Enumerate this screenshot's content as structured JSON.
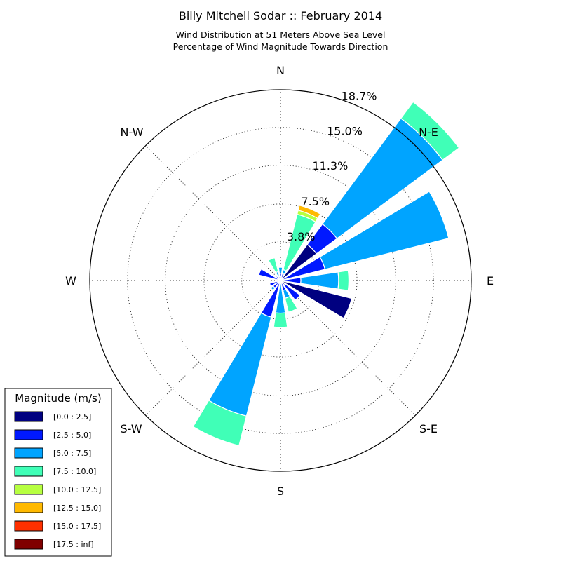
{
  "chart_data": {
    "type": "windrose",
    "title": "Billy Mitchell Sodar :: February 2014",
    "subtitle_1": "Wind Distribution at 51 Meters Above Sea Level",
    "subtitle_2": "Percentage of Wind Magnitude Towards Direction",
    "unit": "%",
    "direction_labels": [
      "N",
      "N-E",
      "E",
      "S-E",
      "S",
      "S-W",
      "W",
      "N-W"
    ],
    "radial_ticks": [
      3.8,
      7.5,
      11.3,
      15.0,
      18.7
    ],
    "radial_tick_labels": [
      "3.8%",
      "7.5%",
      "11.3%",
      "15.0%",
      "18.7%"
    ],
    "rmax": 18.7,
    "grid": true,
    "legend": {
      "title": "Magnitude (m/s)",
      "placement": "lower-left",
      "bins": [
        {
          "label": "[0.0 : 2.5]",
          "color": "#000080"
        },
        {
          "label": "[2.5 : 5.0]",
          "color": "#0019ff"
        },
        {
          "label": "[5.0 : 7.5]",
          "color": "#00a4ff"
        },
        {
          "label": "[7.5 : 10.0]",
          "color": "#40ffb7"
        },
        {
          "label": "[10.0 : 12.5]",
          "color": "#b7ff40"
        },
        {
          "label": "[12.5 : 15.0]",
          "color": "#ffb900"
        },
        {
          "label": "[15.0 : 17.5]",
          "color": "#ff3000"
        },
        {
          "label": "[17.5 : inf]",
          "color": "#800000"
        }
      ]
    },
    "directions_deg": [
      0,
      22.5,
      45,
      67.5,
      90,
      112.5,
      135,
      157.5,
      180,
      202.5,
      225,
      247.5,
      270,
      292.5,
      315,
      337.5
    ],
    "stacks": [
      [
        0.4,
        0.3,
        0.6,
        0,
        0,
        0,
        0,
        0
      ],
      [
        0.3,
        0.4,
        0.4,
        5.6,
        0.4,
        0.5,
        0,
        0
      ],
      [
        4.4,
        2.5,
        12.9,
        2.0,
        0,
        0,
        0,
        0
      ],
      [
        0.3,
        4.2,
        12.5,
        0,
        0,
        0,
        0,
        0
      ],
      [
        0.3,
        1.7,
        3.7,
        1.0,
        0,
        0,
        0,
        0
      ],
      [
        7.2,
        0,
        0,
        0,
        0,
        0,
        0,
        0
      ],
      [
        0.5,
        1.9,
        0,
        0,
        0,
        0,
        0,
        0
      ],
      [
        0.3,
        0.7,
        0.8,
        1.4,
        0,
        0,
        0,
        0
      ],
      [
        0.3,
        0,
        2.9,
        1.4,
        0,
        0,
        0,
        0
      ],
      [
        0.3,
        3.4,
        10.0,
        3.0,
        0,
        0,
        0,
        0
      ],
      [
        0.3,
        0.6,
        0.3,
        0,
        0,
        0,
        0,
        0
      ],
      [
        0.3,
        0.8,
        0,
        0,
        0,
        0,
        0,
        0
      ],
      [
        0.1,
        0.2,
        0,
        0,
        0,
        0,
        0,
        0
      ],
      [
        0.3,
        1.9,
        0,
        0,
        0,
        0,
        0,
        0
      ],
      [
        0.3,
        0.2,
        0.1,
        0,
        0,
        0,
        0,
        0
      ],
      [
        0.4,
        0.1,
        0.4,
        1.4,
        0,
        0,
        0,
        0
      ]
    ]
  }
}
